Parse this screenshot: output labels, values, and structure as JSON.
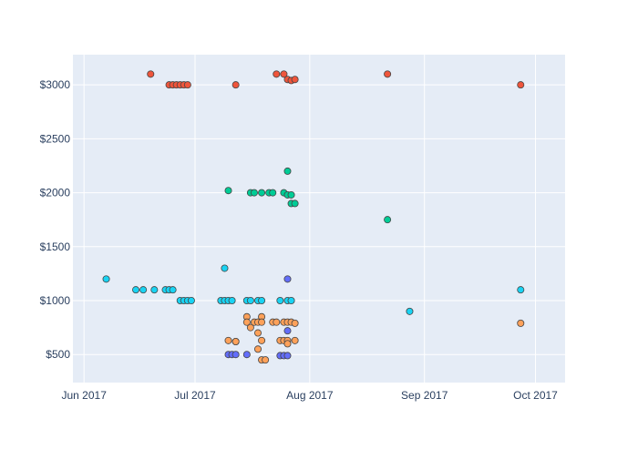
{
  "chart_data": {
    "type": "scatter",
    "title": "",
    "xlabel": "",
    "ylabel": "",
    "x_axis": {
      "type": "date",
      "range": [
        "2017-05-29",
        "2017-10-09"
      ],
      "ticks": [
        {
          "value": "2017-06-01",
          "label": "Jun 2017"
        },
        {
          "value": "2017-07-01",
          "label": "Jul 2017"
        },
        {
          "value": "2017-08-01",
          "label": "Aug 2017"
        },
        {
          "value": "2017-09-01",
          "label": "Sep 2017"
        },
        {
          "value": "2017-10-01",
          "label": "Oct 2017"
        }
      ]
    },
    "y_axis": {
      "range": [
        240,
        3280
      ],
      "ticks": [
        {
          "value": 500,
          "label": "$500"
        },
        {
          "value": 1000,
          "label": "$1000"
        },
        {
          "value": 1500,
          "label": "$1500"
        },
        {
          "value": 2000,
          "label": "$2000"
        },
        {
          "value": 2500,
          "label": "$2500"
        },
        {
          "value": 3000,
          "label": "$3000"
        }
      ]
    },
    "grid": true,
    "legend": "none",
    "colors": {
      "plot_background": "#e5ecf6",
      "grid": "#ffffff",
      "marker_outline": "#444444",
      "tick_text": "#2a3f5f"
    },
    "series": [
      {
        "color": "#ef553b",
        "points": [
          {
            "x": "2017-06-19",
            "y": 3100
          },
          {
            "x": "2017-06-24",
            "y": 3000
          },
          {
            "x": "2017-06-25",
            "y": 3000
          },
          {
            "x": "2017-06-26",
            "y": 3000
          },
          {
            "x": "2017-06-27",
            "y": 3000
          },
          {
            "x": "2017-06-28",
            "y": 3000
          },
          {
            "x": "2017-06-29",
            "y": 3000
          },
          {
            "x": "2017-07-12",
            "y": 3000
          },
          {
            "x": "2017-07-23",
            "y": 3100
          },
          {
            "x": "2017-07-25",
            "y": 3100
          },
          {
            "x": "2017-07-26",
            "y": 3050
          },
          {
            "x": "2017-07-27",
            "y": 3040
          },
          {
            "x": "2017-07-28",
            "y": 3050
          },
          {
            "x": "2017-08-22",
            "y": 3100
          },
          {
            "x": "2017-09-27",
            "y": 3000
          }
        ]
      },
      {
        "color": "#00cc96",
        "points": [
          {
            "x": "2017-07-10",
            "y": 2020
          },
          {
            "x": "2017-07-16",
            "y": 2000
          },
          {
            "x": "2017-07-17",
            "y": 2000
          },
          {
            "x": "2017-07-19",
            "y": 2000
          },
          {
            "x": "2017-07-21",
            "y": 2000
          },
          {
            "x": "2017-07-22",
            "y": 2000
          },
          {
            "x": "2017-07-25",
            "y": 2000
          },
          {
            "x": "2017-07-26",
            "y": 2200
          },
          {
            "x": "2017-07-26",
            "y": 1980
          },
          {
            "x": "2017-07-27",
            "y": 1980
          },
          {
            "x": "2017-07-27",
            "y": 1900
          },
          {
            "x": "2017-07-28",
            "y": 1900
          },
          {
            "x": "2017-08-22",
            "y": 1750
          }
        ]
      },
      {
        "color": "#19d3f3",
        "points": [
          {
            "x": "2017-06-07",
            "y": 1200
          },
          {
            "x": "2017-06-15",
            "y": 1100
          },
          {
            "x": "2017-06-17",
            "y": 1100
          },
          {
            "x": "2017-06-20",
            "y": 1100
          },
          {
            "x": "2017-06-23",
            "y": 1100
          },
          {
            "x": "2017-06-24",
            "y": 1100
          },
          {
            "x": "2017-06-25",
            "y": 1100
          },
          {
            "x": "2017-06-27",
            "y": 1000
          },
          {
            "x": "2017-06-28",
            "y": 1000
          },
          {
            "x": "2017-06-29",
            "y": 1000
          },
          {
            "x": "2017-06-30",
            "y": 1000
          },
          {
            "x": "2017-07-08",
            "y": 1000
          },
          {
            "x": "2017-07-09",
            "y": 1300
          },
          {
            "x": "2017-07-09",
            "y": 1000
          },
          {
            "x": "2017-07-10",
            "y": 1000
          },
          {
            "x": "2017-07-11",
            "y": 1000
          },
          {
            "x": "2017-07-15",
            "y": 1000
          },
          {
            "x": "2017-07-16",
            "y": 1000
          },
          {
            "x": "2017-07-18",
            "y": 1000
          },
          {
            "x": "2017-07-19",
            "y": 1000
          },
          {
            "x": "2017-07-24",
            "y": 1000
          },
          {
            "x": "2017-07-26",
            "y": 1000
          },
          {
            "x": "2017-07-27",
            "y": 1000
          },
          {
            "x": "2017-08-28",
            "y": 900
          },
          {
            "x": "2017-09-27",
            "y": 1100
          }
        ]
      },
      {
        "color": "#636efa",
        "points": [
          {
            "x": "2017-07-10",
            "y": 500
          },
          {
            "x": "2017-07-11",
            "y": 500
          },
          {
            "x": "2017-07-12",
            "y": 500
          },
          {
            "x": "2017-07-12",
            "y": 620
          },
          {
            "x": "2017-07-15",
            "y": 500
          },
          {
            "x": "2017-07-24",
            "y": 490
          },
          {
            "x": "2017-07-25",
            "y": 490
          },
          {
            "x": "2017-07-26",
            "y": 490
          },
          {
            "x": "2017-07-26",
            "y": 1200
          },
          {
            "x": "2017-07-26",
            "y": 720
          }
        ]
      },
      {
        "color": "#fea15a",
        "points": [
          {
            "x": "2017-07-10",
            "y": 630
          },
          {
            "x": "2017-07-12",
            "y": 620
          },
          {
            "x": "2017-07-15",
            "y": 850
          },
          {
            "x": "2017-07-15",
            "y": 800
          },
          {
            "x": "2017-07-16",
            "y": 750
          },
          {
            "x": "2017-07-17",
            "y": 800
          },
          {
            "x": "2017-07-18",
            "y": 800
          },
          {
            "x": "2017-07-18",
            "y": 700
          },
          {
            "x": "2017-07-18",
            "y": 550
          },
          {
            "x": "2017-07-19",
            "y": 850
          },
          {
            "x": "2017-07-19",
            "y": 800
          },
          {
            "x": "2017-07-19",
            "y": 630
          },
          {
            "x": "2017-07-19",
            "y": 450
          },
          {
            "x": "2017-07-20",
            "y": 450
          },
          {
            "x": "2017-07-22",
            "y": 800
          },
          {
            "x": "2017-07-23",
            "y": 800
          },
          {
            "x": "2017-07-24",
            "y": 630
          },
          {
            "x": "2017-07-25",
            "y": 630
          },
          {
            "x": "2017-07-25",
            "y": 800
          },
          {
            "x": "2017-07-26",
            "y": 800
          },
          {
            "x": "2017-07-26",
            "y": 630
          },
          {
            "x": "2017-07-26",
            "y": 600
          },
          {
            "x": "2017-07-27",
            "y": 800
          },
          {
            "x": "2017-07-28",
            "y": 790
          },
          {
            "x": "2017-07-28",
            "y": 630
          },
          {
            "x": "2017-09-27",
            "y": 790
          }
        ]
      }
    ]
  }
}
